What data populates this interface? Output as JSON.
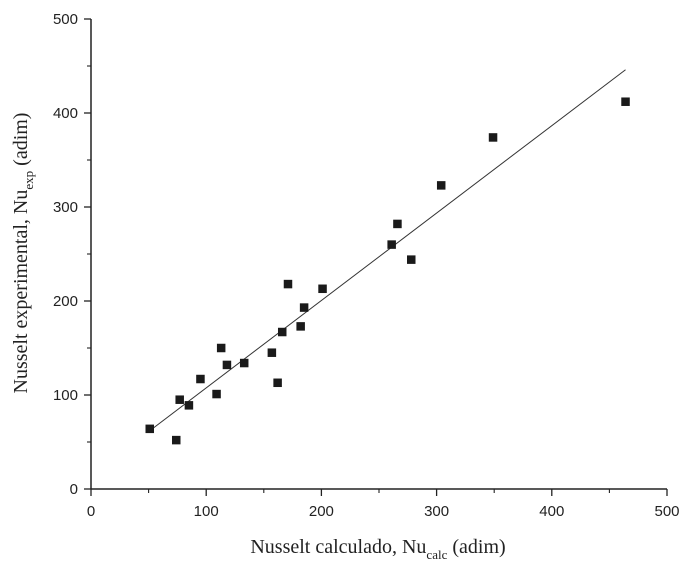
{
  "chart_data": {
    "type": "scatter",
    "xlabel": {
      "prefix": "Nusselt calculado, Nu",
      "sub": "calc",
      "suffix": " (adim)"
    },
    "ylabel": {
      "prefix": "Nusselt experimental, Nu",
      "sub": "exp",
      "suffix": " (adim)"
    },
    "xlim": [
      0,
      500
    ],
    "ylim": [
      0,
      500
    ],
    "xticks": [
      0,
      100,
      200,
      300,
      400,
      500
    ],
    "yticks": [
      0,
      100,
      200,
      300,
      400,
      500
    ],
    "x_tick_labels": [
      "0",
      "100",
      "200",
      "300",
      "400",
      "500"
    ],
    "y_tick_labels": [
      "0",
      "100",
      "200",
      "300",
      "400",
      "500"
    ],
    "grid": false,
    "marker_color": "#1a1a1a",
    "line_color": "#333333",
    "series": [
      {
        "marker": "square",
        "points": [
          {
            "x": 51,
            "y": 64
          },
          {
            "x": 74,
            "y": 52
          },
          {
            "x": 77,
            "y": 95
          },
          {
            "x": 85,
            "y": 89
          },
          {
            "x": 95,
            "y": 117
          },
          {
            "x": 109,
            "y": 101
          },
          {
            "x": 113,
            "y": 150
          },
          {
            "x": 118,
            "y": 132
          },
          {
            "x": 133,
            "y": 134
          },
          {
            "x": 157,
            "y": 145
          },
          {
            "x": 162,
            "y": 113
          },
          {
            "x": 166,
            "y": 167
          },
          {
            "x": 171,
            "y": 218
          },
          {
            "x": 182,
            "y": 173
          },
          {
            "x": 185,
            "y": 193
          },
          {
            "x": 201,
            "y": 213
          },
          {
            "x": 261,
            "y": 260
          },
          {
            "x": 266,
            "y": 282
          },
          {
            "x": 278,
            "y": 244
          },
          {
            "x": 304,
            "y": 323
          },
          {
            "x": 349,
            "y": 374
          },
          {
            "x": 464,
            "y": 412
          }
        ]
      }
    ],
    "fit_line": {
      "x": [
        51,
        464
      ],
      "y": [
        62,
        446
      ]
    }
  }
}
